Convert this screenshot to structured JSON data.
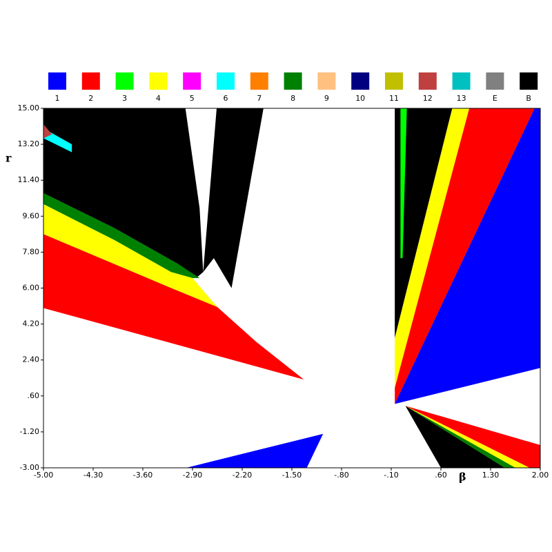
{
  "chart_data": {
    "type": "region",
    "x_label": "β",
    "y_label": "r",
    "xlim": [
      -5,
      2
    ],
    "ylim": [
      -3,
      15
    ],
    "xticks": [
      {
        "value": -5,
        "label": "-5.00"
      },
      {
        "value": -4.3,
        "label": "-4.30"
      },
      {
        "value": -3.6,
        "label": "-3.60"
      },
      {
        "value": -2.9,
        "label": "-2.90"
      },
      {
        "value": -2.2,
        "label": "-2.20"
      },
      {
        "value": -1.5,
        "label": "-1.50"
      },
      {
        "value": -0.8,
        "label": "-.80"
      },
      {
        "value": -0.1,
        "label": "-.10"
      },
      {
        "value": 0.6,
        "label": ".60"
      },
      {
        "value": 1.3,
        "label": "1.30"
      },
      {
        "value": 2,
        "label": "2.00"
      }
    ],
    "yticks": [
      {
        "value": 15,
        "label": "15.00"
      },
      {
        "value": 13.2,
        "label": "13.20"
      },
      {
        "value": 11.4,
        "label": "11.40"
      },
      {
        "value": 9.6,
        "label": "9.60"
      },
      {
        "value": 7.8,
        "label": "7.80"
      },
      {
        "value": 6,
        "label": "6.00"
      },
      {
        "value": 4.2,
        "label": "4.20"
      },
      {
        "value": 2.4,
        "label": "2.40"
      },
      {
        "value": 0.6,
        "label": ".60"
      },
      {
        "value": -1.2,
        "label": "-1.20"
      },
      {
        "value": -3,
        "label": "-3.00"
      }
    ],
    "legend": [
      {
        "name": "1",
        "color": "#0000ff"
      },
      {
        "name": "2",
        "color": "#ff0000"
      },
      {
        "name": "3",
        "color": "#00ff00"
      },
      {
        "name": "4",
        "color": "#ffff00"
      },
      {
        "name": "5",
        "color": "#ff00ff"
      },
      {
        "name": "6",
        "color": "#00ffff"
      },
      {
        "name": "7",
        "color": "#ff8000"
      },
      {
        "name": "8",
        "color": "#008000"
      },
      {
        "name": "9",
        "color": "#ffc080"
      },
      {
        "name": "10",
        "color": "#000080"
      },
      {
        "name": "11",
        "color": "#c0c000"
      },
      {
        "name": "12",
        "color": "#c04040"
      },
      {
        "name": "13",
        "color": "#00c0c0"
      },
      {
        "name": "E",
        "color": "#808080"
      },
      {
        "name": "B",
        "color": "#000000"
      }
    ],
    "regions": [
      {
        "color": "#000000",
        "beta": [
          -5,
          -3.0,
          -2.8,
          -2.75,
          -2.85,
          -3.1,
          -4,
          -5
        ],
        "r": [
          15,
          15,
          10,
          6.8,
          6.5,
          7.2,
          9.0,
          10.75
        ]
      },
      {
        "color": "#000000",
        "beta": [
          -2.56,
          -1.9,
          -2.2,
          -2.35,
          -2.6,
          -2.75
        ],
        "r": [
          15,
          15,
          9,
          6.0,
          7.5,
          6.8
        ]
      },
      {
        "color": "#008000",
        "beta": [
          -5,
          -4,
          -3.1,
          -2.8,
          -2.9,
          -3.2,
          -4,
          -5
        ],
        "r": [
          10.75,
          9.0,
          7.2,
          6.5,
          6.5,
          6.8,
          8.4,
          10.2
        ]
      },
      {
        "color": "#ffff00",
        "beta": [
          -5,
          -4,
          -3.2,
          -2.9,
          -2.55,
          -3.2,
          -4,
          -5
        ],
        "r": [
          10.2,
          8.4,
          6.8,
          6.5,
          5.05,
          6.0,
          7.2,
          8.7
        ]
      },
      {
        "color": "#ff0000",
        "beta": [
          -5,
          -4,
          -3.2,
          -2.55,
          -2.0,
          -1.33,
          -5
        ],
        "r": [
          8.7,
          7.2,
          6.0,
          5.05,
          3.3,
          1.42,
          5.0
        ]
      },
      {
        "color": "#00ffff",
        "beta": [
          -5,
          -4.6,
          -4.6,
          -5
        ],
        "r": [
          13.5,
          12.8,
          13.2,
          14.0
        ]
      },
      {
        "color": "#c04040",
        "beta": [
          -5,
          -4.88,
          -5
        ],
        "r": [
          14.2,
          13.7,
          13.5
        ]
      },
      {
        "color": "#000000",
        "beta": [
          -0.05,
          0.76,
          -0.05
        ],
        "r": [
          15,
          15,
          3.5
        ]
      },
      {
        "color": "#00ff00",
        "beta": [
          0.03,
          0.12,
          0.06,
          0.03
        ],
        "r": [
          15,
          15,
          7.5,
          7.5
        ]
      },
      {
        "color": "#ffff00",
        "beta": [
          -0.05,
          0.76,
          1.0,
          -0.05
        ],
        "r": [
          3.5,
          15,
          15,
          1.0
        ]
      },
      {
        "color": "#ff0000",
        "beta": [
          -0.05,
          1.0,
          1.92,
          -0.05
        ],
        "r": [
          1.0,
          15,
          15,
          0.2
        ]
      },
      {
        "color": "#0000ff",
        "beta": [
          -0.05,
          1.92,
          2,
          2
        ],
        "r": [
          0.2,
          15,
          15,
          2.0
        ]
      },
      {
        "color": "#ff0000",
        "beta": [
          0.1,
          2,
          2,
          1.85
        ],
        "r": [
          0.1,
          -1.86,
          -3,
          -3
        ]
      },
      {
        "color": "#ffff00",
        "beta": [
          0.1,
          1.85,
          1.65
        ],
        "r": [
          0.1,
          -3,
          -3
        ]
      },
      {
        "color": "#008000",
        "beta": [
          0.1,
          1.65,
          1.5
        ],
        "r": [
          0.1,
          -3,
          -3
        ]
      },
      {
        "color": "#000000",
        "beta": [
          0.1,
          1.5,
          0.6
        ],
        "r": [
          0.1,
          -3,
          -3
        ]
      },
      {
        "color": "#0000ff",
        "beta": [
          -2.99,
          -1.06,
          -1.29
        ],
        "r": [
          -3,
          -1.3,
          -3
        ]
      }
    ]
  }
}
